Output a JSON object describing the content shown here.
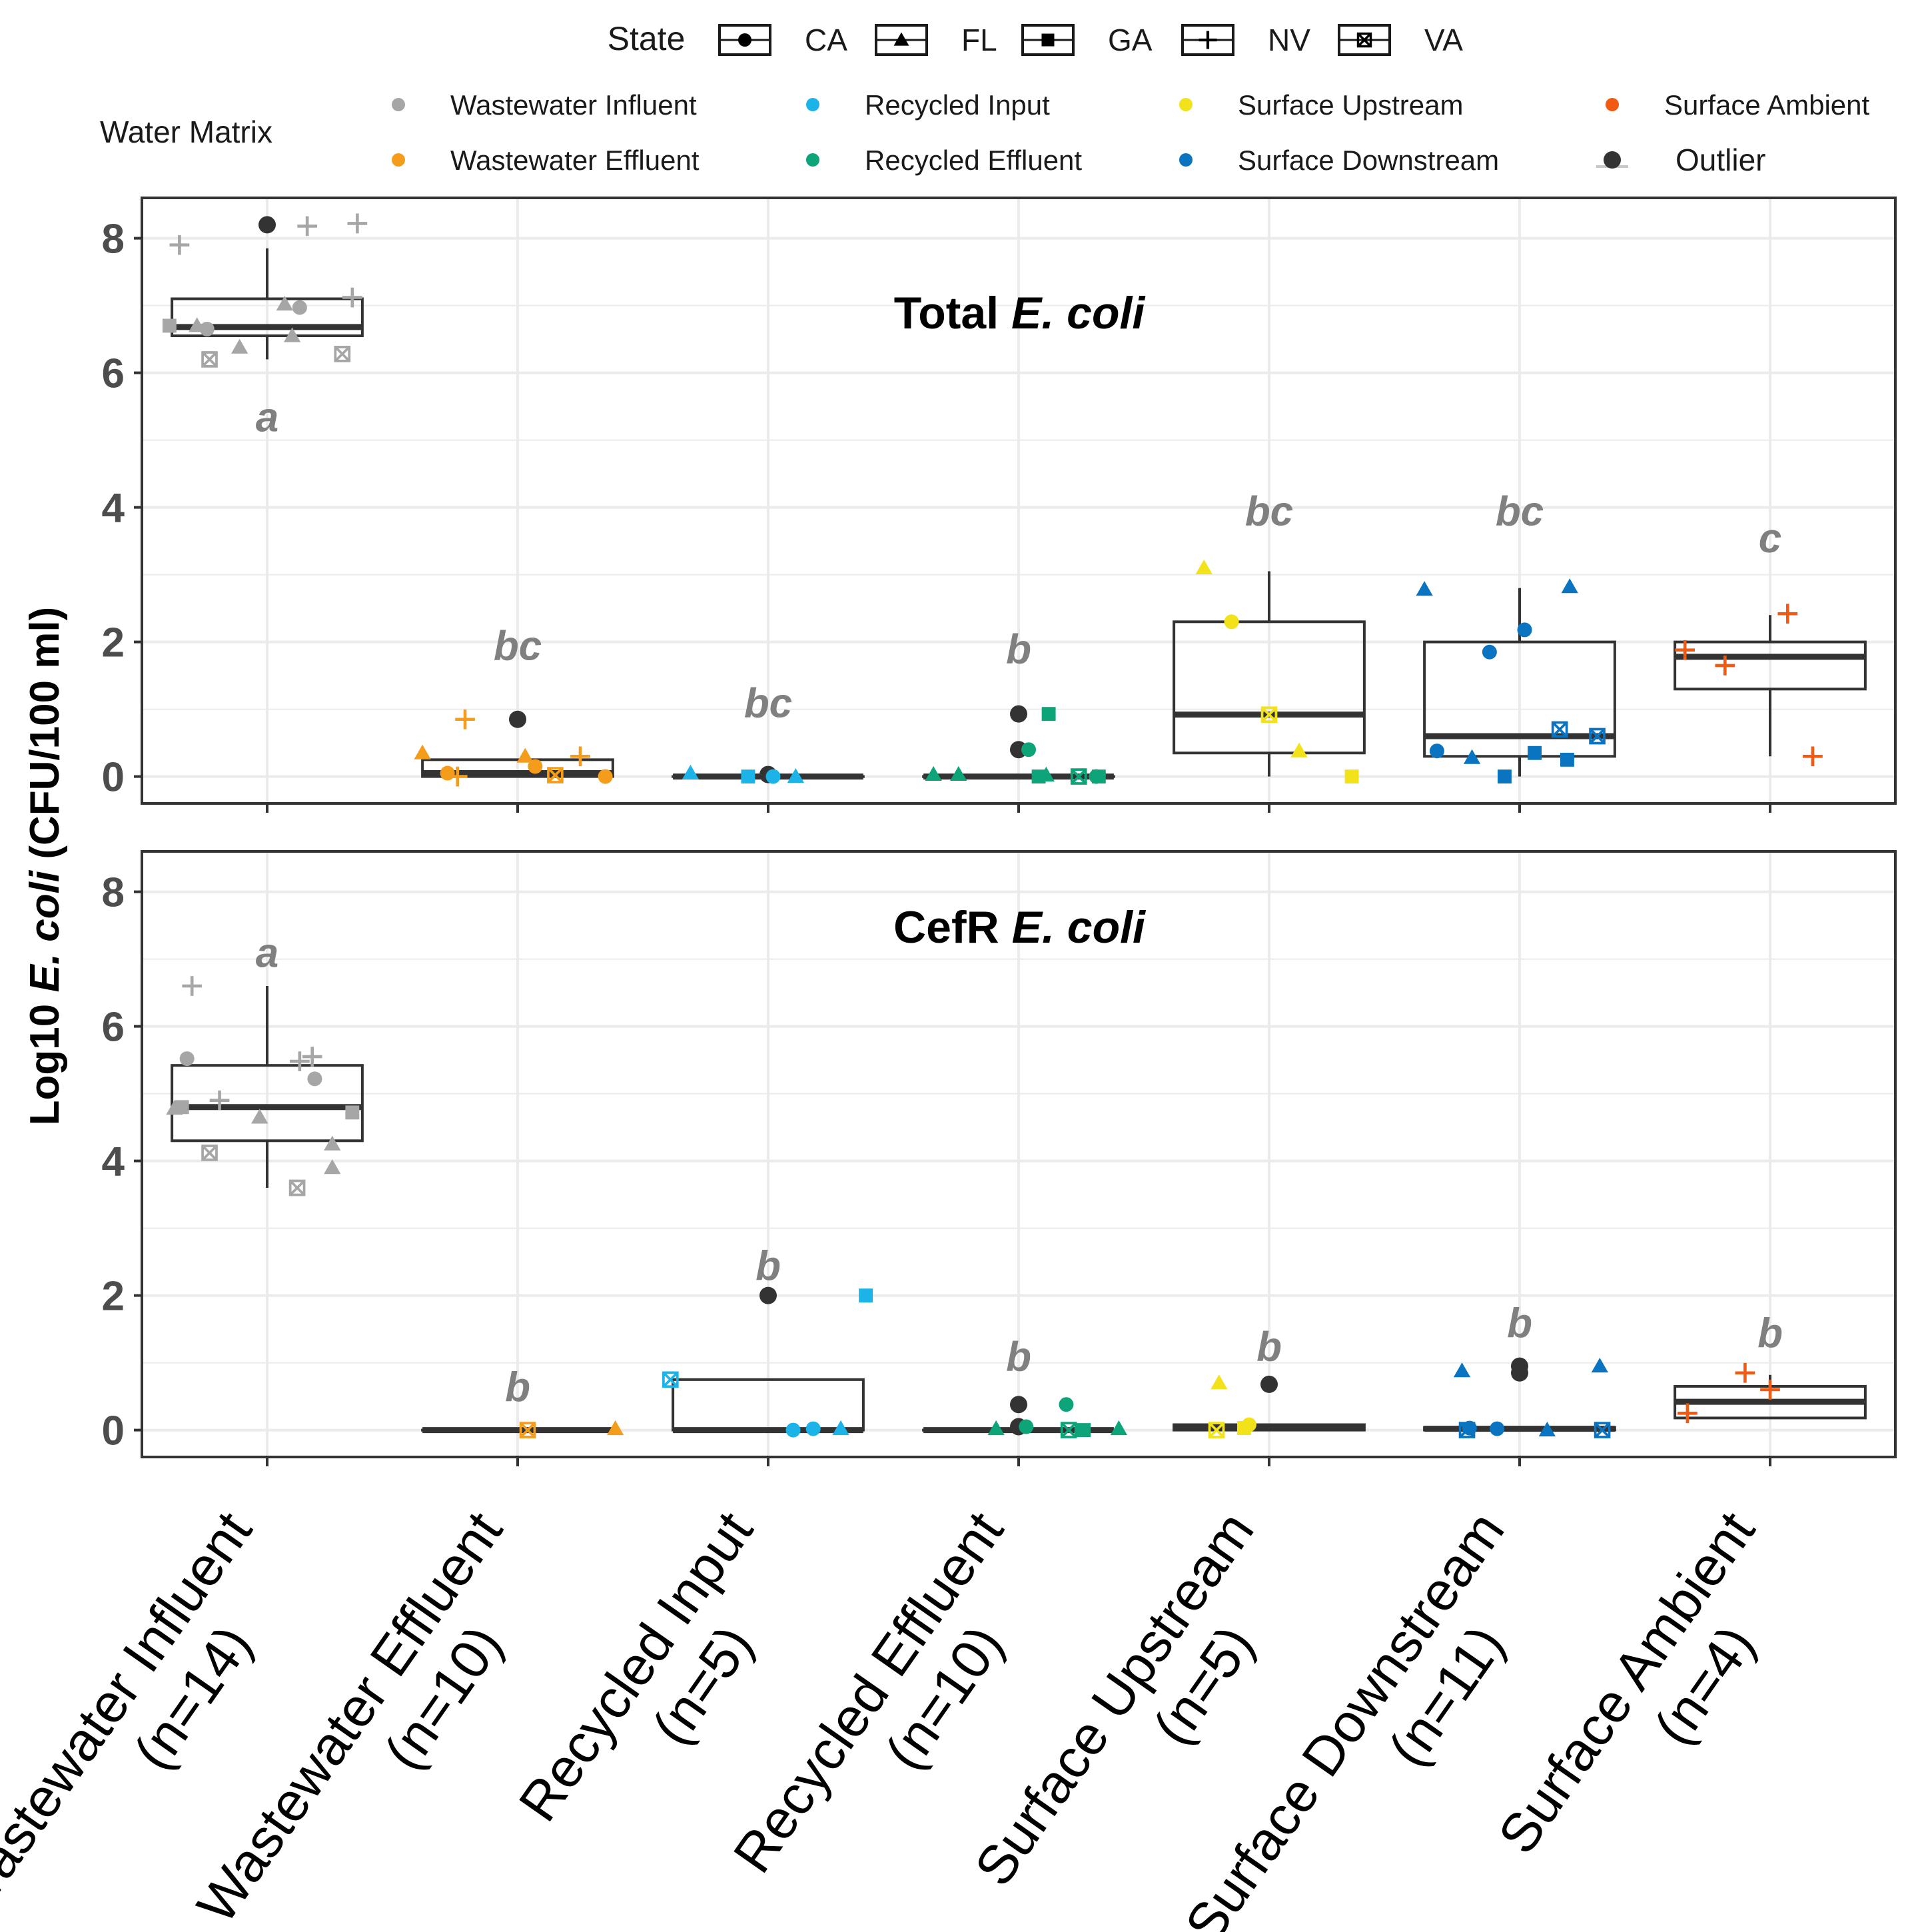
{
  "legend": {
    "state_title": "State",
    "states": [
      {
        "label": "CA",
        "shape": "circle"
      },
      {
        "label": "FL",
        "shape": "triangle"
      },
      {
        "label": "GA",
        "shape": "square"
      },
      {
        "label": "NV",
        "shape": "plus"
      },
      {
        "label": "VA",
        "shape": "boxx"
      }
    ],
    "matrix_title": "Water Matrix",
    "matrices": [
      {
        "label": "Wastewater Influent",
        "color": "#a6a6a6"
      },
      {
        "label": "Wastewater Effluent",
        "color": "#f49c1c"
      },
      {
        "label": "Recycled Input",
        "color": "#1cb4e8"
      },
      {
        "label": "Recycled Effluent",
        "color": "#0ea47a"
      },
      {
        "label": "Surface Upstream",
        "color": "#f2e21a"
      },
      {
        "label": "Surface Downstream",
        "color": "#0a74c0"
      },
      {
        "label": "Surface Ambient",
        "color": "#f05a12"
      },
      {
        "label": "Outlier",
        "color": "#333333"
      }
    ]
  },
  "chart_data": {
    "type": "box",
    "ylabel_parts": [
      "Log10 ",
      "E. coli",
      " (CFU/100 ml)"
    ],
    "ylim": [
      -0.4,
      8.6
    ],
    "yticks": [
      "0",
      "2",
      "4",
      "6",
      "8"
    ],
    "categories": [
      {
        "name": "Wastewater Influent",
        "n": "(n=14)"
      },
      {
        "name": "Wastewater Effluent",
        "n": "(n=10)"
      },
      {
        "name": "Recycled Input",
        "n": "(n=5)"
      },
      {
        "name": "Recycled Effluent",
        "n": "(n=10)"
      },
      {
        "name": "Surface Upstream",
        "n": "(n=5)"
      },
      {
        "name": "Surface Downstream",
        "n": "(n=11)"
      },
      {
        "name": "Surface Ambient",
        "n": "(n=4)"
      }
    ],
    "panels": [
      {
        "title_parts": [
          "Total ",
          "E. coli"
        ],
        "boxes": [
          {
            "q1": 6.55,
            "median": 6.68,
            "q3": 7.1,
            "wlo": 6.2,
            "whi": 7.85,
            "letter": "a",
            "letter_y": 5.35
          },
          {
            "q1": 0.0,
            "median": 0.05,
            "q3": 0.25,
            "wlo": 0.0,
            "whi": 0.25,
            "letter": "bc",
            "letter_y": 1.95
          },
          {
            "q1": 0.0,
            "median": 0.0,
            "q3": 0.0,
            "wlo": 0.0,
            "whi": 0.0,
            "letter": "bc",
            "letter_y": 1.1
          },
          {
            "q1": 0.0,
            "median": 0.0,
            "q3": 0.0,
            "wlo": 0.0,
            "whi": 0.0,
            "letter": "b",
            "letter_y": 1.9
          },
          {
            "q1": 0.35,
            "median": 0.92,
            "q3": 2.3,
            "wlo": 0.0,
            "whi": 3.05,
            "letter": "bc",
            "letter_y": 3.95
          },
          {
            "q1": 0.3,
            "median": 0.6,
            "q3": 2.0,
            "wlo": 0.0,
            "whi": 2.8,
            "letter": "bc",
            "letter_y": 3.95
          },
          {
            "q1": 1.3,
            "median": 1.78,
            "q3": 2.0,
            "wlo": 0.3,
            "whi": 2.4,
            "letter": "c",
            "letter_y": 3.55
          }
        ],
        "points": [
          {
            "cat": 0,
            "dx": -0.35,
            "y": 7.9,
            "shape": "plus"
          },
          {
            "cat": 0,
            "dx": 0.0,
            "y": 8.2,
            "shape": "circle",
            "outlier": true
          },
          {
            "cat": 0,
            "dx": 0.16,
            "y": 8.18,
            "shape": "plus"
          },
          {
            "cat": 0,
            "dx": 0.36,
            "y": 8.22,
            "shape": "plus"
          },
          {
            "cat": 0,
            "dx": 0.34,
            "y": 7.12,
            "shape": "plus"
          },
          {
            "cat": 0,
            "dx": 0.07,
            "y": 7.02,
            "shape": "triangle"
          },
          {
            "cat": 0,
            "dx": 0.13,
            "y": 6.97,
            "shape": "circle"
          },
          {
            "cat": 0,
            "dx": -0.39,
            "y": 6.7,
            "shape": "square"
          },
          {
            "cat": 0,
            "dx": -0.28,
            "y": 6.7,
            "shape": "triangle"
          },
          {
            "cat": 0,
            "dx": -0.24,
            "y": 6.65,
            "shape": "circle"
          },
          {
            "cat": 0,
            "dx": 0.1,
            "y": 6.55,
            "shape": "triangle"
          },
          {
            "cat": 0,
            "dx": -0.11,
            "y": 6.38,
            "shape": "triangle"
          },
          {
            "cat": 0,
            "dx": -0.23,
            "y": 6.2,
            "shape": "boxx"
          },
          {
            "cat": 0,
            "dx": 0.3,
            "y": 6.28,
            "shape": "boxx"
          },
          {
            "cat": 1,
            "dx": -0.21,
            "y": 0.85,
            "shape": "plus"
          },
          {
            "cat": 1,
            "dx": 0.0,
            "y": 0.85,
            "shape": "circle",
            "outlier": true
          },
          {
            "cat": 1,
            "dx": -0.38,
            "y": 0.35,
            "shape": "triangle"
          },
          {
            "cat": 1,
            "dx": 0.03,
            "y": 0.3,
            "shape": "triangle"
          },
          {
            "cat": 1,
            "dx": 0.25,
            "y": 0.3,
            "shape": "plus"
          },
          {
            "cat": 1,
            "dx": 0.07,
            "y": 0.15,
            "shape": "circle"
          },
          {
            "cat": 1,
            "dx": -0.28,
            "y": 0.05,
            "shape": "circle"
          },
          {
            "cat": 1,
            "dx": -0.24,
            "y": 0.0,
            "shape": "plus"
          },
          {
            "cat": 1,
            "dx": 0.15,
            "y": 0.02,
            "shape": "boxx"
          },
          {
            "cat": 1,
            "dx": 0.35,
            "y": 0.0,
            "shape": "circle"
          },
          {
            "cat": 2,
            "dx": -0.31,
            "y": 0.05,
            "shape": "triangle"
          },
          {
            "cat": 2,
            "dx": -0.08,
            "y": 0.0,
            "shape": "square"
          },
          {
            "cat": 2,
            "dx": 0.0,
            "y": 0.03,
            "shape": "circle",
            "outlier": true
          },
          {
            "cat": 2,
            "dx": 0.02,
            "y": 0.0,
            "shape": "circle"
          },
          {
            "cat": 2,
            "dx": 0.11,
            "y": 0.0,
            "shape": "triangle"
          },
          {
            "cat": 3,
            "dx": 0.0,
            "y": 0.93,
            "shape": "circle",
            "outlier": true
          },
          {
            "cat": 3,
            "dx": 0.12,
            "y": 0.93,
            "shape": "square"
          },
          {
            "cat": 3,
            "dx": 0.0,
            "y": 0.4,
            "shape": "circle",
            "outlier": true
          },
          {
            "cat": 3,
            "dx": 0.04,
            "y": 0.4,
            "shape": "circle"
          },
          {
            "cat": 3,
            "dx": -0.34,
            "y": 0.03,
            "shape": "triangle"
          },
          {
            "cat": 3,
            "dx": -0.24,
            "y": 0.03,
            "shape": "triangle"
          },
          {
            "cat": 3,
            "dx": 0.08,
            "y": 0.0,
            "shape": "square"
          },
          {
            "cat": 3,
            "dx": 0.11,
            "y": 0.02,
            "shape": "triangle"
          },
          {
            "cat": 3,
            "dx": 0.24,
            "y": 0.0,
            "shape": "boxx"
          },
          {
            "cat": 3,
            "dx": 0.31,
            "y": 0.0,
            "shape": "circle"
          },
          {
            "cat": 3,
            "dx": 0.32,
            "y": 0.0,
            "shape": "square"
          },
          {
            "cat": 4,
            "dx": -0.26,
            "y": 3.1,
            "shape": "triangle"
          },
          {
            "cat": 4,
            "dx": -0.15,
            "y": 2.3,
            "shape": "circle"
          },
          {
            "cat": 4,
            "dx": 0.0,
            "y": 0.92,
            "shape": "boxx"
          },
          {
            "cat": 4,
            "dx": 0.12,
            "y": 0.38,
            "shape": "triangle"
          },
          {
            "cat": 4,
            "dx": 0.33,
            "y": 0.0,
            "shape": "square"
          },
          {
            "cat": 5,
            "dx": -0.38,
            "y": 2.78,
            "shape": "triangle"
          },
          {
            "cat": 5,
            "dx": 0.2,
            "y": 2.82,
            "shape": "triangle"
          },
          {
            "cat": 5,
            "dx": 0.02,
            "y": 2.18,
            "shape": "circle"
          },
          {
            "cat": 5,
            "dx": -0.12,
            "y": 1.85,
            "shape": "circle"
          },
          {
            "cat": 5,
            "dx": 0.16,
            "y": 0.7,
            "shape": "boxx"
          },
          {
            "cat": 5,
            "dx": 0.31,
            "y": 0.6,
            "shape": "boxx"
          },
          {
            "cat": 5,
            "dx": -0.33,
            "y": 0.38,
            "shape": "circle"
          },
          {
            "cat": 5,
            "dx": 0.06,
            "y": 0.35,
            "shape": "square"
          },
          {
            "cat": 5,
            "dx": -0.19,
            "y": 0.28,
            "shape": "triangle"
          },
          {
            "cat": 5,
            "dx": 0.19,
            "y": 0.25,
            "shape": "square"
          },
          {
            "cat": 5,
            "dx": -0.06,
            "y": 0.0,
            "shape": "square"
          },
          {
            "cat": 6,
            "dx": 0.07,
            "y": 2.42,
            "shape": "plus"
          },
          {
            "cat": 6,
            "dx": -0.34,
            "y": 1.88,
            "shape": "plus"
          },
          {
            "cat": 6,
            "dx": -0.18,
            "y": 1.65,
            "shape": "plus"
          },
          {
            "cat": 6,
            "dx": 0.17,
            "y": 0.3,
            "shape": "plus"
          }
        ]
      },
      {
        "title_parts": [
          "CefR ",
          "E. coli"
        ],
        "boxes": [
          {
            "q1": 4.3,
            "median": 4.8,
            "q3": 5.42,
            "wlo": 3.6,
            "whi": 6.6,
            "letter": "a",
            "letter_y": 7.1
          },
          {
            "q1": 0.0,
            "median": 0.0,
            "q3": 0.0,
            "wlo": 0.0,
            "whi": 0.0,
            "letter": "b",
            "letter_y": 0.65
          },
          {
            "q1": 0.0,
            "median": 0.0,
            "q3": 0.75,
            "wlo": 0.0,
            "whi": 0.75,
            "letter": "b",
            "letter_y": 2.45
          },
          {
            "q1": 0.0,
            "median": 0.0,
            "q3": 0.0,
            "wlo": 0.0,
            "whi": 0.0,
            "letter": "b",
            "letter_y": 1.1
          },
          {
            "q1": 0.0,
            "median": 0.04,
            "q3": 0.08,
            "wlo": 0.0,
            "whi": 0.08,
            "letter": "b",
            "letter_y": 1.25
          },
          {
            "q1": 0.0,
            "median": 0.02,
            "q3": 0.04,
            "wlo": 0.0,
            "whi": 0.04,
            "letter": "b",
            "letter_y": 1.6
          },
          {
            "q1": 0.18,
            "median": 0.42,
            "q3": 0.65,
            "wlo": 0.18,
            "whi": 0.82,
            "letter": "b",
            "letter_y": 1.45
          }
        ],
        "points": [
          {
            "cat": 0,
            "dx": -0.3,
            "y": 6.6,
            "shape": "plus"
          },
          {
            "cat": 0,
            "dx": -0.32,
            "y": 5.52,
            "shape": "circle"
          },
          {
            "cat": 0,
            "dx": 0.18,
            "y": 5.55,
            "shape": "plus"
          },
          {
            "cat": 0,
            "dx": 0.13,
            "y": 5.48,
            "shape": "plus"
          },
          {
            "cat": 0,
            "dx": 0.19,
            "y": 5.22,
            "shape": "circle"
          },
          {
            "cat": 0,
            "dx": -0.19,
            "y": 4.9,
            "shape": "plus"
          },
          {
            "cat": 0,
            "dx": -0.34,
            "y": 4.8,
            "shape": "square"
          },
          {
            "cat": 0,
            "dx": -0.37,
            "y": 4.78,
            "shape": "triangle"
          },
          {
            "cat": 0,
            "dx": 0.34,
            "y": 4.72,
            "shape": "square"
          },
          {
            "cat": 0,
            "dx": -0.03,
            "y": 4.65,
            "shape": "triangle"
          },
          {
            "cat": 0,
            "dx": 0.26,
            "y": 4.25,
            "shape": "triangle"
          },
          {
            "cat": 0,
            "dx": -0.23,
            "y": 4.12,
            "shape": "boxx"
          },
          {
            "cat": 0,
            "dx": 0.26,
            "y": 3.9,
            "shape": "triangle"
          },
          {
            "cat": 0,
            "dx": 0.12,
            "y": 3.6,
            "shape": "boxx"
          },
          {
            "cat": 1,
            "dx": 0.04,
            "y": 0.0,
            "shape": "boxx"
          },
          {
            "cat": 1,
            "dx": 0.39,
            "y": 0.02,
            "shape": "triangle"
          },
          {
            "cat": 2,
            "dx": 0.0,
            "y": 2.0,
            "shape": "circle",
            "outlier": true
          },
          {
            "cat": 2,
            "dx": 0.39,
            "y": 2.0,
            "shape": "square"
          },
          {
            "cat": 2,
            "dx": -0.39,
            "y": 0.75,
            "shape": "boxx"
          },
          {
            "cat": 2,
            "dx": 0.1,
            "y": 0.0,
            "shape": "circle"
          },
          {
            "cat": 2,
            "dx": 0.18,
            "y": 0.02,
            "shape": "circle"
          },
          {
            "cat": 2,
            "dx": 0.29,
            "y": 0.02,
            "shape": "triangle"
          },
          {
            "cat": 3,
            "dx": 0.0,
            "y": 0.38,
            "shape": "circle",
            "outlier": true
          },
          {
            "cat": 3,
            "dx": 0.19,
            "y": 0.38,
            "shape": "circle"
          },
          {
            "cat": 3,
            "dx": 0.0,
            "y": 0.05,
            "shape": "circle",
            "outlier": true
          },
          {
            "cat": 3,
            "dx": -0.09,
            "y": 0.02,
            "shape": "triangle"
          },
          {
            "cat": 3,
            "dx": 0.03,
            "y": 0.05,
            "shape": "circle"
          },
          {
            "cat": 3,
            "dx": 0.2,
            "y": 0.0,
            "shape": "boxx"
          },
          {
            "cat": 3,
            "dx": 0.26,
            "y": 0.0,
            "shape": "square"
          },
          {
            "cat": 3,
            "dx": 0.4,
            "y": 0.02,
            "shape": "triangle"
          },
          {
            "cat": 4,
            "dx": -0.2,
            "y": 0.7,
            "shape": "triangle"
          },
          {
            "cat": 4,
            "dx": 0.0,
            "y": 0.68,
            "shape": "circle",
            "outlier": true
          },
          {
            "cat": 4,
            "dx": -0.08,
            "y": 0.08,
            "shape": "circle"
          },
          {
            "cat": 4,
            "dx": -0.1,
            "y": 0.03,
            "shape": "square"
          },
          {
            "cat": 4,
            "dx": -0.21,
            "y": 0.0,
            "shape": "boxx"
          },
          {
            "cat": 5,
            "dx": -0.23,
            "y": 0.88,
            "shape": "triangle"
          },
          {
            "cat": 5,
            "dx": 0.0,
            "y": 0.95,
            "shape": "circle",
            "outlier": true
          },
          {
            "cat": 5,
            "dx": 0.0,
            "y": 0.85,
            "shape": "circle",
            "outlier": true
          },
          {
            "cat": 5,
            "dx": 0.32,
            "y": 0.95,
            "shape": "triangle"
          },
          {
            "cat": 5,
            "dx": -0.2,
            "y": 0.03,
            "shape": "circle"
          },
          {
            "cat": 5,
            "dx": -0.21,
            "y": 0.0,
            "shape": "boxx"
          },
          {
            "cat": 5,
            "dx": -0.09,
            "y": 0.02,
            "shape": "circle"
          },
          {
            "cat": 5,
            "dx": 0.11,
            "y": 0.0,
            "shape": "triangle"
          },
          {
            "cat": 5,
            "dx": 0.33,
            "y": 0.0,
            "shape": "boxx"
          },
          {
            "cat": 6,
            "dx": -0.1,
            "y": 0.85,
            "shape": "plus"
          },
          {
            "cat": 6,
            "dx": 0.0,
            "y": 0.6,
            "shape": "plus"
          },
          {
            "cat": 6,
            "dx": -0.33,
            "y": 0.25,
            "shape": "plus"
          }
        ]
      }
    ]
  }
}
